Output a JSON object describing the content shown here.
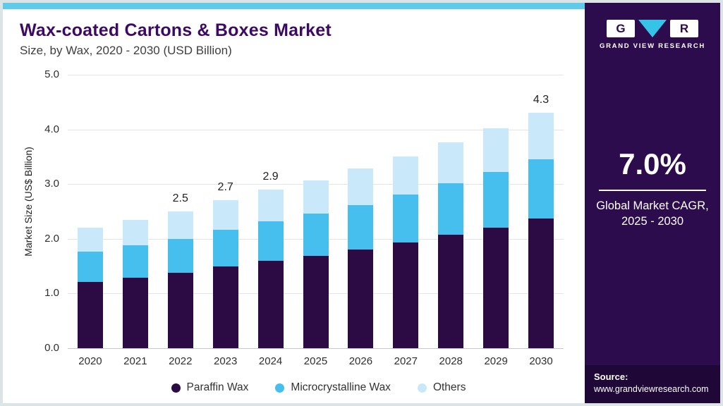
{
  "chart_data": {
    "type": "bar",
    "stacked": true,
    "title": "Wax-coated Cartons & Boxes Market",
    "subtitle": "Size, by Wax, 2020 - 2030 (USD Billion)",
    "ylabel": "Market Size (US$ Billion)",
    "ylim": [
      0,
      5
    ],
    "yticks": [
      "0.0",
      "1.0",
      "2.0",
      "3.0",
      "4.0",
      "5.0"
    ],
    "grid": true,
    "legend_position": "bottom",
    "categories": [
      "2020",
      "2021",
      "2022",
      "2023",
      "2024",
      "2025",
      "2026",
      "2027",
      "2028",
      "2029",
      "2030"
    ],
    "series": [
      {
        "name": "Paraffin Wax",
        "color": "#2c0b44",
        "values": [
          1.21,
          1.29,
          1.38,
          1.49,
          1.6,
          1.69,
          1.8,
          1.93,
          2.07,
          2.21,
          2.37
        ]
      },
      {
        "name": "Microcrystalline Wax",
        "color": "#47bfee",
        "values": [
          0.55,
          0.59,
          0.62,
          0.67,
          0.72,
          0.77,
          0.82,
          0.88,
          0.94,
          1.01,
          1.08
        ]
      },
      {
        "name": "Others",
        "color": "#c9e9fa",
        "values": [
          0.44,
          0.47,
          0.5,
          0.54,
          0.58,
          0.61,
          0.66,
          0.7,
          0.75,
          0.8,
          0.85
        ]
      }
    ],
    "totals": [
      2.2,
      2.35,
      2.5,
      2.7,
      2.9,
      3.07,
      3.28,
      3.51,
      3.76,
      4.02,
      4.3
    ],
    "bar_total_labels": [
      "",
      "",
      "2.5",
      "2.7",
      "2.9",
      "",
      "",
      "",
      "",
      "",
      "4.3"
    ]
  },
  "sidebar": {
    "brand": "GRAND VIEW RESEARCH",
    "logo_g": "G",
    "logo_r": "R",
    "cagr_value": "7.0%",
    "cagr_line1": "Global Market CAGR,",
    "cagr_line2": "2025 - 2030",
    "source_label": "Source:",
    "source_url": "www.grandviewresearch.com"
  },
  "colors": {
    "accent_strip": "#5fcaea",
    "sidebar_bg": "#2d0c4e",
    "source_bg": "#1f0838",
    "title_text": "#3c0a63",
    "paraffin": "#2c0b44",
    "microcrystalline": "#47bfee",
    "others": "#c9e9fa"
  }
}
